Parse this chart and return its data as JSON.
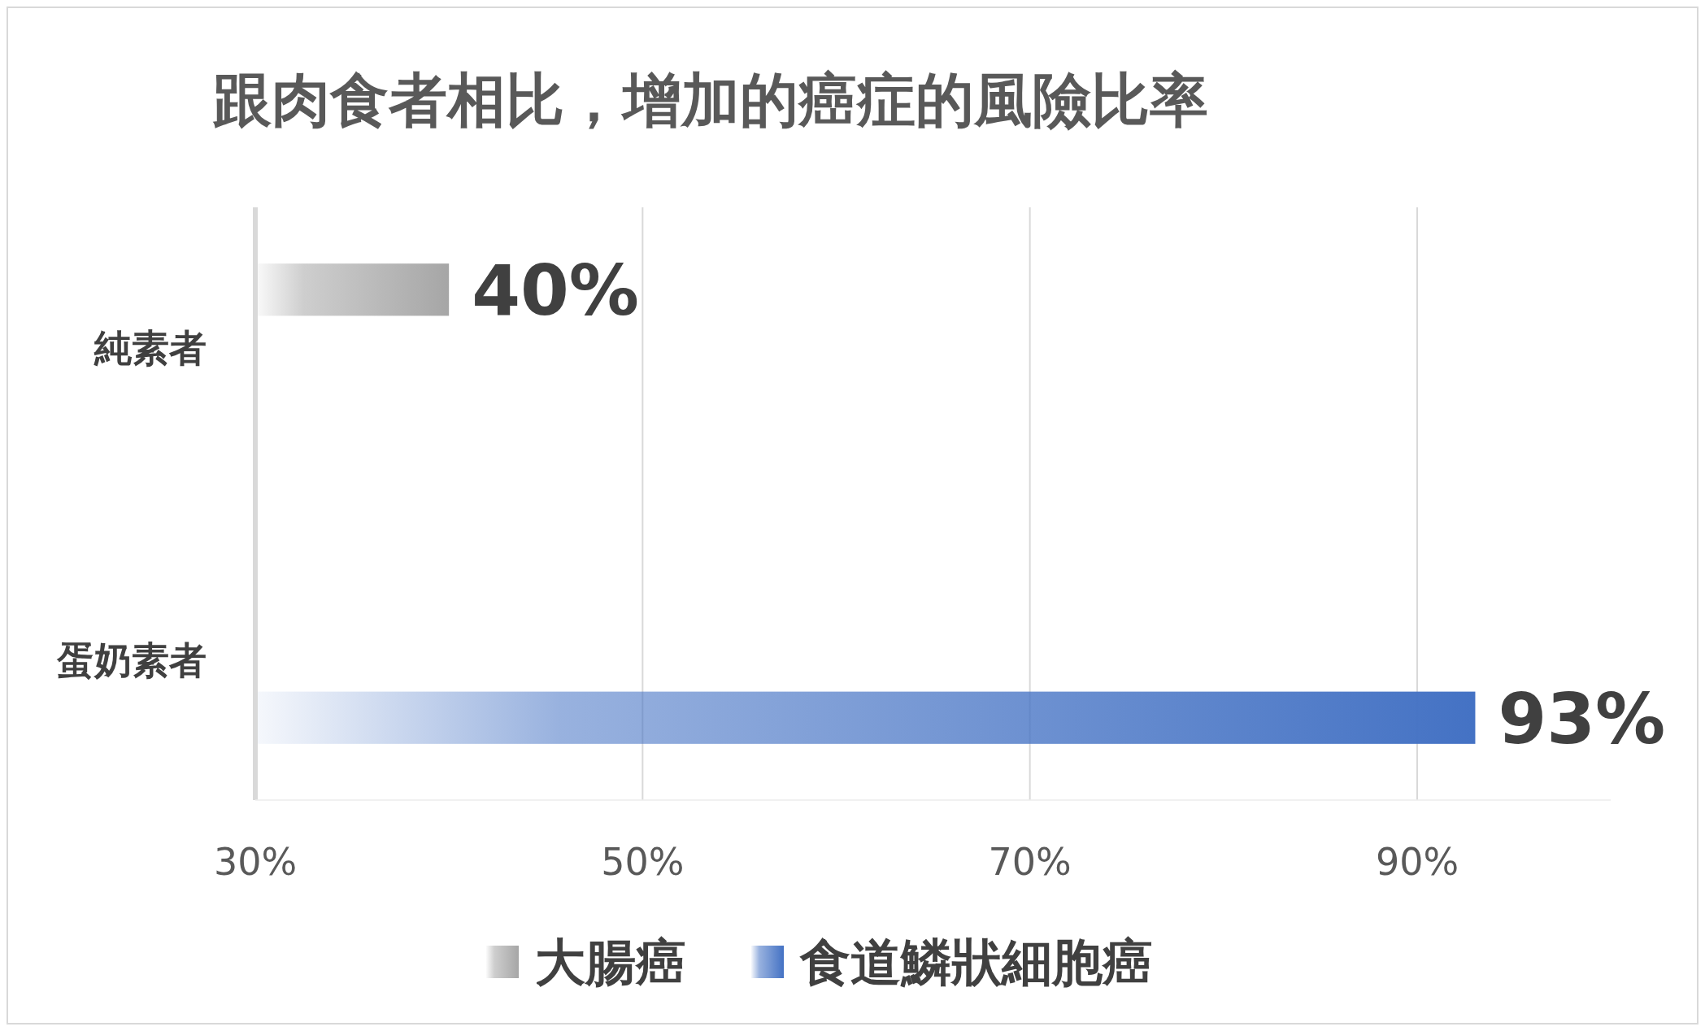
{
  "chart_data": {
    "type": "bar",
    "orientation": "horizontal",
    "title": "跟肉食者相比，增加的癌症的風險比率",
    "categories": [
      "純素者",
      "蛋奶素者"
    ],
    "series": [
      {
        "name": "大腸癌",
        "color": "#a6a6a6",
        "values": [
          40,
          null
        ]
      },
      {
        "name": "食道鱗狀細胞癌",
        "color": "#4472c4",
        "values": [
          null,
          93
        ]
      }
    ],
    "value_labels": [
      [
        "40%",
        null
      ],
      [
        null,
        "93%"
      ]
    ],
    "xlim": [
      30,
      100
    ],
    "xticks": [
      {
        "value": 30,
        "label": "30%"
      },
      {
        "value": 50,
        "label": "50%"
      },
      {
        "value": 70,
        "label": "70%"
      },
      {
        "value": 90,
        "label": "90%"
      }
    ],
    "grid": "x",
    "legend": "bottom"
  }
}
